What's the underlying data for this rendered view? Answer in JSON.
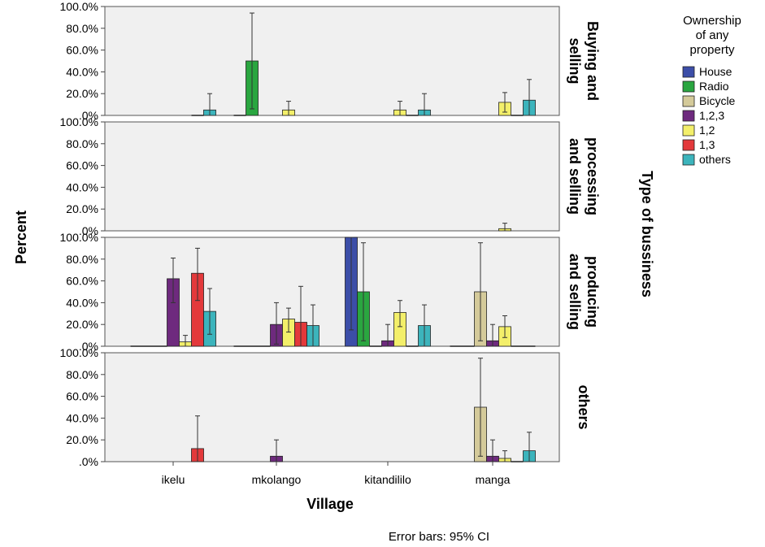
{
  "chart_data": {
    "type": "bar",
    "y_axis_label": "Percent",
    "x_axis_label": "Village",
    "panel_axis_label": "Type of bussiness",
    "footnote": "Error bars: 95% CI",
    "legend_title": [
      "Ownership",
      "of any",
      "property"
    ],
    "y_ticks": [
      ".0%",
      "20.0%",
      "40.0%",
      "60.0%",
      "80.0%",
      "100.0%"
    ],
    "ylim": [
      0,
      100
    ],
    "grid": false,
    "legend_position": "right",
    "categories": [
      "ikelu",
      "mkolango",
      "kitandililo",
      "manga"
    ],
    "series": [
      {
        "name": "House",
        "color": "#3c4ea8"
      },
      {
        "name": "Radio",
        "color": "#2aa640"
      },
      {
        "name": "Bicycle",
        "color": "#d4ca9a"
      },
      {
        "name": "1,2,3",
        "color": "#6e2a7e"
      },
      {
        "name": "1,2",
        "color": "#f3ef6a"
      },
      {
        "name": "1,3",
        "color": "#e3393b"
      },
      {
        "name": "others",
        "color": "#3cb4bc"
      }
    ],
    "panels": [
      {
        "label": [
          "Buying and",
          "selling"
        ],
        "values": [
          [
            null,
            null,
            null,
            null,
            null,
            0,
            5
          ],
          [
            0,
            50,
            null,
            null,
            5,
            null,
            null
          ],
          [
            null,
            null,
            null,
            null,
            5,
            0,
            5
          ],
          [
            null,
            null,
            null,
            null,
            12,
            0,
            14
          ]
        ],
        "ci": [
          [
            null,
            null,
            null,
            null,
            null,
            null,
            [
              0,
              20
            ]
          ],
          [
            null,
            [
              6,
              94
            ],
            null,
            null,
            [
              0,
              13
            ],
            null,
            null
          ],
          [
            null,
            null,
            null,
            null,
            [
              0,
              13
            ],
            null,
            [
              0,
              20
            ]
          ],
          [
            null,
            null,
            null,
            null,
            [
              3,
              21
            ],
            null,
            [
              0,
              33
            ]
          ]
        ]
      },
      {
        "label": [
          "processing",
          "and selling"
        ],
        "values": [
          [
            null,
            null,
            null,
            null,
            null,
            null,
            null
          ],
          [
            null,
            null,
            null,
            null,
            null,
            null,
            null
          ],
          [
            null,
            null,
            null,
            null,
            null,
            null,
            null
          ],
          [
            null,
            null,
            null,
            null,
            2,
            null,
            null
          ]
        ],
        "ci": [
          [
            null,
            null,
            null,
            null,
            null,
            null,
            null
          ],
          [
            null,
            null,
            null,
            null,
            null,
            null,
            null
          ],
          [
            null,
            null,
            null,
            null,
            null,
            null,
            null
          ],
          [
            null,
            null,
            null,
            null,
            [
              0,
              7
            ],
            null,
            null
          ]
        ]
      },
      {
        "label": [
          "producing",
          "and selling"
        ],
        "values": [
          [
            0,
            0,
            0,
            62,
            4,
            67,
            32
          ],
          [
            0,
            0,
            0,
            20,
            25,
            22,
            19
          ],
          [
            100,
            50,
            0,
            5,
            31,
            0,
            19
          ],
          [
            0,
            0,
            50,
            5,
            18,
            0,
            0
          ]
        ],
        "ci": [
          [
            null,
            null,
            null,
            [
              40,
              81
            ],
            [
              0,
              10
            ],
            [
              42,
              90
            ],
            [
              11,
              53
            ]
          ],
          [
            null,
            null,
            null,
            [
              2,
              40
            ],
            [
              13,
              35
            ],
            [
              0,
              55
            ],
            [
              0,
              38
            ]
          ],
          [
            [
              15,
              100
            ],
            [
              5,
              95
            ],
            null,
            [
              0,
              20
            ],
            [
              18,
              42
            ],
            null,
            [
              0,
              38
            ]
          ],
          [
            null,
            null,
            [
              5,
              95
            ],
            [
              0,
              20
            ],
            [
              8,
              28
            ],
            null,
            null
          ]
        ]
      },
      {
        "label": [
          "others"
        ],
        "values": [
          [
            null,
            null,
            null,
            null,
            null,
            12,
            null
          ],
          [
            null,
            null,
            null,
            5,
            null,
            null,
            null
          ],
          [
            null,
            null,
            null,
            null,
            null,
            null,
            null
          ],
          [
            null,
            null,
            50,
            5,
            3,
            0,
            10
          ]
        ],
        "ci": [
          [
            null,
            null,
            null,
            null,
            null,
            [
              0,
              42
            ],
            null
          ],
          [
            null,
            null,
            null,
            [
              0,
              20
            ],
            null,
            null,
            null
          ],
          [
            null,
            null,
            null,
            null,
            null,
            null,
            null
          ],
          [
            null,
            null,
            [
              5,
              95
            ],
            [
              0,
              20
            ],
            [
              0,
              10
            ],
            null,
            [
              0,
              27
            ]
          ]
        ]
      }
    ]
  }
}
